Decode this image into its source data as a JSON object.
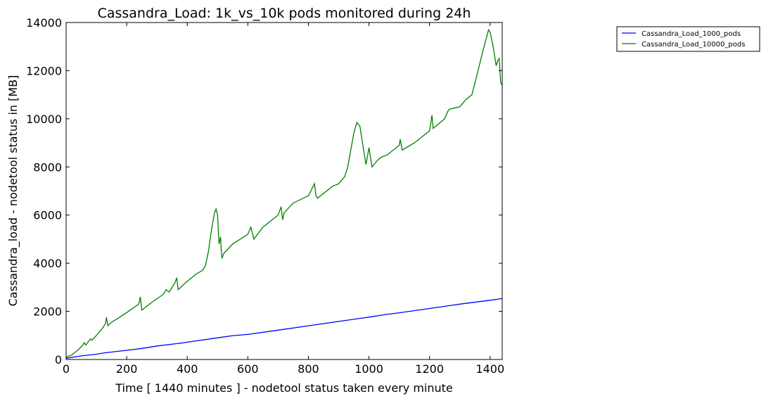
{
  "chart_data": {
    "type": "line",
    "title": "Cassandra_Load: 1k_vs_10k pods monitored during 24h",
    "xlabel": "Time [ 1440 minutes ] - nodetool status taken every minute",
    "ylabel": "Cassandra_load - nodetool status in [MB]",
    "xlim": [
      0,
      1440
    ],
    "ylim": [
      0,
      14000
    ],
    "xticks": [
      0,
      200,
      400,
      600,
      800,
      1000,
      1200,
      1400
    ],
    "yticks": [
      0,
      2000,
      4000,
      6000,
      8000,
      10000,
      12000,
      14000
    ],
    "grid": false,
    "legend_position": "outside-top-right",
    "series": [
      {
        "name": "Cassandra_Load_1000_pods",
        "color": "#0000ff",
        "x": [
          0,
          50,
          100,
          130,
          200,
          250,
          300,
          380,
          400,
          500,
          550,
          600,
          700,
          800,
          900,
          1000,
          1050,
          1100,
          1200,
          1300,
          1400,
          1440
        ],
        "y": [
          50,
          150,
          220,
          280,
          380,
          460,
          560,
          680,
          720,
          900,
          990,
          1040,
          1220,
          1400,
          1580,
          1760,
          1860,
          1940,
          2120,
          2300,
          2460,
          2530
        ]
      },
      {
        "name": "Cassandra_Load_10000_pods",
        "color": "#008000",
        "x": [
          0,
          20,
          40,
          55,
          60,
          65,
          80,
          85,
          100,
          110,
          120,
          130,
          133,
          138,
          150,
          170,
          200,
          240,
          245,
          250,
          280,
          320,
          330,
          340,
          360,
          365,
          370,
          400,
          430,
          450,
          460,
          470,
          480,
          490,
          495,
          500,
          505,
          510,
          512,
          515,
          520,
          550,
          600,
          610,
          620,
          650,
          700,
          710,
          715,
          720,
          750,
          800,
          820,
          825,
          830,
          880,
          900,
          920,
          930,
          940,
          950,
          960,
          970,
          980,
          990,
          1000,
          1005,
          1010,
          1030,
          1040,
          1060,
          1100,
          1103,
          1110,
          1150,
          1200,
          1208,
          1212,
          1250,
          1260,
          1265,
          1300,
          1320,
          1340,
          1360,
          1380,
          1395,
          1400,
          1410,
          1420,
          1425,
          1430,
          1435,
          1440
        ],
        "y": [
          100,
          200,
          400,
          600,
          700,
          600,
          850,
          800,
          1000,
          1150,
          1300,
          1500,
          1750,
          1400,
          1550,
          1700,
          1950,
          2300,
          2600,
          2050,
          2350,
          2700,
          2900,
          2800,
          3200,
          3400,
          2900,
          3250,
          3550,
          3700,
          3900,
          4500,
          5400,
          6100,
          6250,
          6000,
          4800,
          5100,
          4600,
          4200,
          4400,
          4800,
          5200,
          5500,
          5000,
          5500,
          6000,
          6350,
          5800,
          6100,
          6500,
          6800,
          7300,
          6800,
          6700,
          7200,
          7300,
          7600,
          8000,
          8700,
          9400,
          9850,
          9700,
          8900,
          8100,
          8800,
          8400,
          8000,
          8300,
          8400,
          8500,
          8900,
          9150,
          8700,
          9000,
          9500,
          10150,
          9600,
          10000,
          10300,
          10400,
          10500,
          10800,
          11000,
          12000,
          13000,
          13700,
          13600,
          13000,
          12200,
          12400,
          12500,
          11500,
          11400
        ]
      }
    ]
  }
}
